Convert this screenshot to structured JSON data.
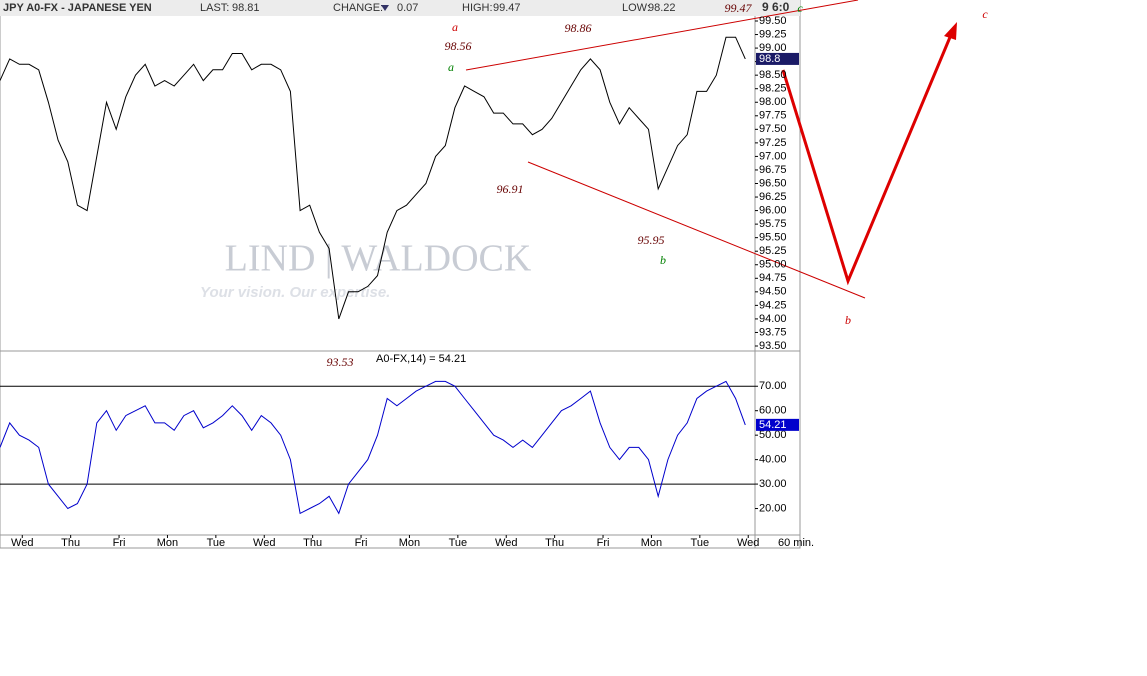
{
  "chart_data": [
    {
      "type": "line",
      "header": {
        "symbol": "JPY A0-FX - JAPANESE YEN",
        "last_label": "LAST:",
        "last": 98.81,
        "change_label": "CHANGE:",
        "change": 0.07,
        "high_label": "HIGH:",
        "high": 99.47,
        "low_label": "LOW:",
        "low": 98.22,
        "time": "9 6:0"
      },
      "watermark": [
        "LIND | WALDOCK",
        "Your vision. Our expertise."
      ],
      "x": [
        0,
        1,
        2,
        3,
        4,
        5,
        6,
        7,
        8,
        9,
        10,
        11,
        12,
        13,
        14,
        15,
        16,
        17,
        18,
        19,
        20,
        21,
        22,
        23,
        24,
        25,
        26,
        27,
        28,
        29,
        30,
        31,
        32,
        33,
        34,
        35,
        36,
        37,
        38,
        39,
        40,
        41,
        42,
        43,
        44,
        45,
        46,
        47,
        48,
        49,
        50,
        51,
        52,
        53,
        54,
        55,
        56,
        57,
        58,
        59,
        60,
        61,
        62,
        63,
        64,
        65,
        66,
        67,
        68,
        69,
        70,
        71,
        72,
        73,
        74,
        75,
        76,
        77
      ],
      "series": [
        {
          "color": "#000000",
          "values": [
            98.4,
            98.8,
            98.7,
            98.7,
            98.6,
            98.0,
            97.3,
            96.9,
            96.1,
            96.0,
            97.0,
            98.0,
            97.5,
            98.1,
            98.5,
            98.7,
            98.3,
            98.4,
            98.3,
            98.5,
            98.7,
            98.4,
            98.6,
            98.6,
            98.9,
            98.9,
            98.6,
            98.7,
            98.7,
            98.6,
            98.2,
            96.0,
            96.1,
            95.6,
            95.3,
            94.0,
            94.5,
            94.5,
            94.6,
            94.8,
            95.6,
            96.0,
            96.1,
            96.3,
            96.5,
            97.0,
            97.2,
            97.9,
            98.3,
            98.2,
            98.1,
            97.8,
            97.8,
            97.6,
            97.6,
            97.4,
            97.5,
            97.7,
            98.0,
            98.3,
            98.6,
            98.8,
            98.6,
            98.0,
            97.6,
            97.9,
            97.7,
            97.5,
            96.4,
            96.8,
            97.2,
            97.4,
            98.2,
            98.2,
            98.5,
            99.2,
            99.2,
            98.8
          ]
        }
      ],
      "xlim": [
        0,
        78
      ],
      "ylim": [
        93.5,
        99.5
      ],
      "yticks": [
        {
          "value": 93.5,
          "label": "93.50"
        },
        {
          "value": 93.75,
          "label": "93.75"
        },
        {
          "value": 94,
          "label": "94.00"
        },
        {
          "value": 94.25,
          "label": "94.25"
        },
        {
          "value": 94.5,
          "label": "94.50"
        },
        {
          "value": 94.75,
          "label": "94.75"
        },
        {
          "value": 95,
          "label": "95.00"
        },
        {
          "value": 95.25,
          "label": "95.25"
        },
        {
          "value": 95.5,
          "label": "95.50"
        },
        {
          "value": 95.75,
          "label": "95.75"
        },
        {
          "value": 96,
          "label": "96.00"
        },
        {
          "value": 96.25,
          "label": "96.25"
        },
        {
          "value": 96.5,
          "label": "96.50"
        },
        {
          "value": 96.75,
          "label": "96.75"
        },
        {
          "value": 97,
          "label": "97.00"
        },
        {
          "value": 97.25,
          "label": "97.25"
        },
        {
          "value": 97.5,
          "label": "97.50"
        },
        {
          "value": 97.75,
          "label": "97.75"
        },
        {
          "value": 98,
          "label": "98.00"
        },
        {
          "value": 98.25,
          "label": "98.25"
        },
        {
          "value": 98.5,
          "label": "98.50"
        },
        {
          "value": 98.75,
          "label": "98.75"
        },
        {
          "value": 99,
          "label": "99.00"
        },
        {
          "value": 99.25,
          "label": "99.25"
        },
        {
          "value": 99.5,
          "label": "99.50"
        }
      ],
      "annotations": [
        {
          "text": "a",
          "color": "#cc0000"
        },
        {
          "text": "98.56",
          "color": "#660000"
        },
        {
          "text": "a",
          "color": "#008000"
        },
        {
          "text": "98.86",
          "color": "#660000"
        },
        {
          "text": "99.47",
          "color": "#660000"
        },
        {
          "text": "c",
          "color": "#008000"
        },
        {
          "text": "c",
          "color": "#cc0000"
        },
        {
          "text": "96.91",
          "color": "#660000"
        },
        {
          "text": "95.95",
          "color": "#660000"
        },
        {
          "text": "b",
          "color": "#008000"
        },
        {
          "text": "b",
          "color": "#cc0000"
        },
        {
          "text": "93.53",
          "color": "#660000"
        }
      ]
    },
    {
      "type": "line",
      "title": "A0-FX,14) = 54.21",
      "x": [
        0,
        1,
        2,
        3,
        4,
        5,
        6,
        7,
        8,
        9,
        10,
        11,
        12,
        13,
        14,
        15,
        16,
        17,
        18,
        19,
        20,
        21,
        22,
        23,
        24,
        25,
        26,
        27,
        28,
        29,
        30,
        31,
        32,
        33,
        34,
        35,
        36,
        37,
        38,
        39,
        40,
        41,
        42,
        43,
        44,
        45,
        46,
        47,
        48,
        49,
        50,
        51,
        52,
        53,
        54,
        55,
        56,
        57,
        58,
        59,
        60,
        61,
        62,
        63,
        64,
        65,
        66,
        67,
        68,
        69,
        70,
        71,
        72,
        73,
        74,
        75,
        76,
        77
      ],
      "series": [
        {
          "color": "#0000cc",
          "values": [
            45,
            55,
            50,
            48,
            45,
            30,
            25,
            20,
            22,
            30,
            55,
            60,
            52,
            58,
            60,
            62,
            55,
            55,
            52,
            58,
            60,
            53,
            55,
            58,
            62,
            58,
            52,
            58,
            55,
            50,
            40,
            18,
            20,
            22,
            25,
            18,
            30,
            35,
            40,
            50,
            65,
            62,
            65,
            68,
            70,
            72,
            72,
            70,
            65,
            60,
            55,
            50,
            48,
            45,
            48,
            45,
            50,
            55,
            60,
            62,
            65,
            68,
            55,
            45,
            40,
            45,
            45,
            40,
            25,
            40,
            50,
            55,
            65,
            68,
            70,
            72,
            65,
            54.21
          ]
        }
      ],
      "xlim": [
        0,
        78
      ],
      "ylim": [
        10,
        84
      ],
      "yticks": [
        {
          "value": 20,
          "label": "20.00"
        },
        {
          "value": 30,
          "label": "30.00"
        },
        {
          "value": 40,
          "label": "40.00"
        },
        {
          "value": 50,
          "label": "50.00"
        },
        {
          "value": 60,
          "label": "60.00"
        },
        {
          "value": 70,
          "label": "70.00"
        }
      ],
      "reference_lines": [
        30,
        70
      ],
      "xticks": [
        {
          "value": 2.3,
          "label": "Wed"
        },
        {
          "value": 7.3,
          "label": "Thu"
        },
        {
          "value": 12.3,
          "label": "Fri"
        },
        {
          "value": 17.3,
          "label": "Mon"
        },
        {
          "value": 22.3,
          "label": "Tue"
        },
        {
          "value": 27.3,
          "label": "Wed"
        },
        {
          "value": 32.3,
          "label": "Thu"
        },
        {
          "value": 37.3,
          "label": "Fri"
        },
        {
          "value": 42.3,
          "label": "Mon"
        },
        {
          "value": 47.3,
          "label": "Tue"
        },
        {
          "value": 52.3,
          "label": "Wed"
        },
        {
          "value": 57.3,
          "label": "Thu"
        },
        {
          "value": 62.3,
          "label": "Fri"
        },
        {
          "value": 67.3,
          "label": "Mon"
        },
        {
          "value": 72.3,
          "label": "Tue"
        },
        {
          "value": 77.3,
          "label": "Wed"
        }
      ],
      "x_unit_label": "60 min."
    }
  ]
}
